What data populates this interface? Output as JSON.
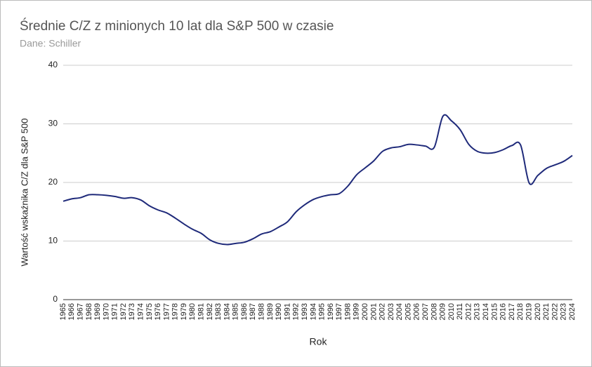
{
  "chart_data": {
    "type": "line",
    "title": "Średnie C/Z z minionych 10 lat dla S&P 500 w czasie",
    "subtitle": "Dane: Schiller",
    "x_label": "Rok",
    "y_label": "Wartość wskaźnika C/Z dla S&P 500",
    "categories": [
      "1965",
      "1966",
      "1967",
      "1968",
      "1969",
      "1970",
      "1971",
      "1972",
      "1973",
      "1974",
      "1975",
      "1976",
      "1977",
      "1978",
      "1979",
      "1980",
      "1981",
      "1982",
      "1983",
      "1984",
      "1985",
      "1986",
      "1987",
      "1988",
      "1989",
      "1990",
      "1991",
      "1992",
      "1993",
      "1994",
      "1995",
      "1996",
      "1997",
      "1998",
      "1999",
      "2000",
      "2001",
      "2002",
      "2003",
      "2004",
      "2005",
      "2006",
      "2007",
      "2008",
      "2009",
      "2010",
      "2011",
      "2012",
      "2013",
      "2014",
      "2015",
      "2016",
      "2017",
      "2018",
      "2019",
      "2020",
      "2021",
      "2022",
      "2023",
      "2024"
    ],
    "series": [
      {
        "name": "C/Z",
        "color": "#1f2a7a",
        "values": [
          16.8,
          17.2,
          17.4,
          17.9,
          17.9,
          17.8,
          17.6,
          17.3,
          17.4,
          17.0,
          16.0,
          15.3,
          14.8,
          13.9,
          12.9,
          12.0,
          11.3,
          10.2,
          9.6,
          9.4,
          9.6,
          9.8,
          10.4,
          11.2,
          11.6,
          12.4,
          13.3,
          15.0,
          16.2,
          17.1,
          17.6,
          17.9,
          18.1,
          19.4,
          21.3,
          22.5,
          23.7,
          25.3,
          25.9,
          26.1,
          26.5,
          26.4,
          26.2,
          26.0,
          31.3,
          30.5,
          29.0,
          26.5,
          25.3,
          25.0,
          25.1,
          25.6,
          26.3,
          26.4,
          19.9,
          21.2,
          22.4,
          23.0,
          23.6,
          24.6
        ]
      }
    ],
    "ylim": [
      0,
      40
    ],
    "yticks": [
      0,
      10,
      20,
      30,
      40
    ],
    "grid": true
  }
}
